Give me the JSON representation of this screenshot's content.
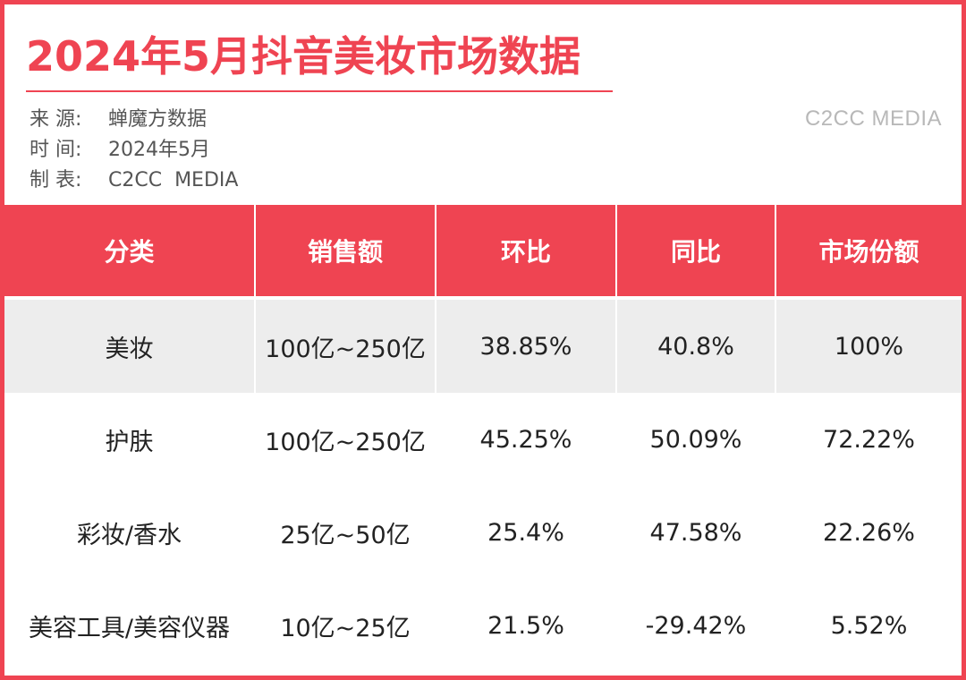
{
  "title": "2024年5月抖音美妆市场数据",
  "meta": [
    {
      "label": "来 源:",
      "value": "蝉魔方数据"
    },
    {
      "label": "时 间:",
      "value": "2024年5月"
    },
    {
      "label": "制 表:",
      "value": "C2CC  MEDIA"
    }
  ],
  "brand": "C2CC MEDIA",
  "colors": {
    "accent": "#ef4452",
    "shade": "#ededed",
    "brand_gray": "#b8b8b8"
  },
  "chart_data": {
    "type": "table",
    "columns": [
      "分类",
      "销售额",
      "环比",
      "同比",
      "市场份额"
    ],
    "rows": [
      [
        "美妆",
        "100亿~250亿",
        "38.85%",
        "40.8%",
        "100%"
      ],
      [
        "护肤",
        "100亿~250亿",
        "45.25%",
        "50.09%",
        "72.22%"
      ],
      [
        "彩妆/香水",
        "25亿~50亿",
        "25.4%",
        "47.58%",
        "22.26%"
      ],
      [
        "美容工具/美容仪器",
        "10亿~25亿",
        "21.5%",
        "-29.42%",
        "5.52%"
      ]
    ]
  }
}
